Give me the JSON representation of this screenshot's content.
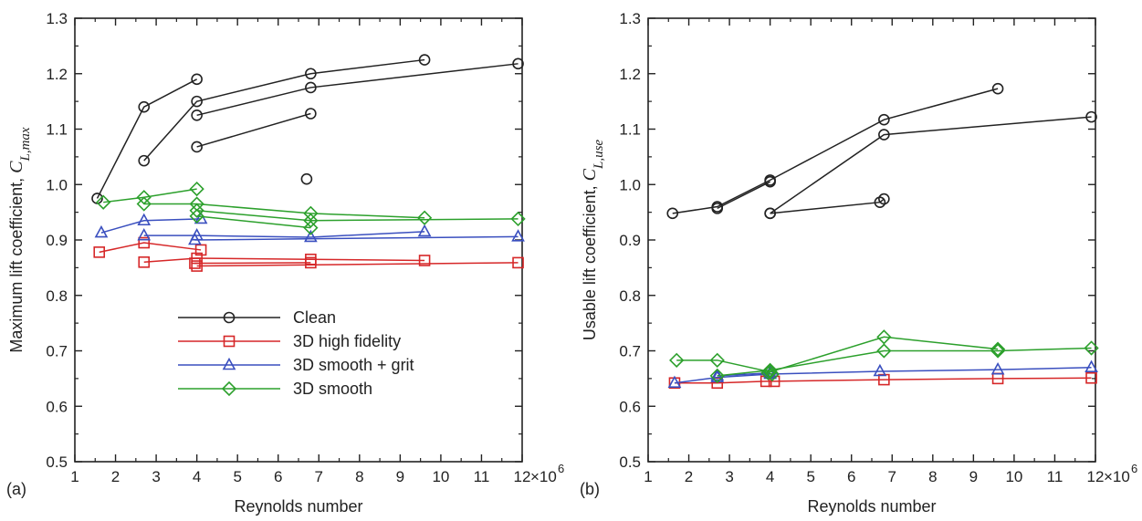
{
  "figure": {
    "panels": [
      "(a)",
      "(b)"
    ],
    "multiplier": "×10",
    "multiplier_exp": "6"
  },
  "legend": [
    {
      "label": "Clean",
      "color": "#222222",
      "marker": "circle"
    },
    {
      "label": "3D high fidelity",
      "color": "#d62728",
      "marker": "square"
    },
    {
      "label": "3D smooth + grit",
      "color": "#3a4fbf",
      "marker": "triangle"
    },
    {
      "label": "3D smooth",
      "color": "#2ca02c",
      "marker": "diamond"
    }
  ],
  "chart_data": [
    {
      "type": "line",
      "panel_label": "(a)",
      "xlabel": "Reynolds number",
      "ylabel_main": "Maximum lift coefficient, ",
      "ylabel_symbol": "C",
      "ylabel_sub": "L,max",
      "xlim": [
        1,
        12
      ],
      "ylim": [
        0.5,
        1.3
      ],
      "xticks": [
        "1",
        "2",
        "3",
        "4",
        "5",
        "6",
        "7",
        "8",
        "9",
        "10",
        "11",
        "12"
      ],
      "yticks": [
        "0.5",
        "0.6",
        "0.7",
        "0.8",
        "0.9",
        "1.0",
        "1.1",
        "1.2",
        "1.3"
      ],
      "grid": false,
      "legend_position": "lower-middle",
      "series": [
        {
          "name": "Clean",
          "color": "#222222",
          "marker": "circle",
          "lines": [
            [
              [
                1.55,
                0.975
              ],
              [
                2.7,
                1.14
              ],
              [
                4.0,
                1.19
              ]
            ],
            [
              [
                2.7,
                1.043
              ],
              [
                4.0,
                1.15
              ],
              [
                6.8,
                1.2
              ],
              [
                9.6,
                1.225
              ]
            ],
            [
              [
                4.0,
                1.125
              ],
              [
                6.8,
                1.175
              ],
              [
                11.9,
                1.218
              ]
            ],
            [
              [
                4.0,
                1.068
              ],
              [
                6.8,
                1.128
              ]
            ],
            [
              [
                6.7,
                1.01
              ]
            ]
          ]
        },
        {
          "name": "3D high fidelity",
          "color": "#d62728",
          "marker": "square",
          "lines": [
            [
              [
                1.6,
                0.878
              ],
              [
                2.7,
                0.895
              ],
              [
                4.1,
                0.882
              ]
            ],
            [
              [
                2.7,
                0.86
              ],
              [
                4.0,
                0.867
              ],
              [
                6.8,
                0.865
              ],
              [
                9.6,
                0.863
              ]
            ],
            [
              [
                3.95,
                0.858
              ],
              [
                6.8,
                0.859
              ]
            ],
            [
              [
                4.0,
                0.853
              ],
              [
                11.9,
                0.859
              ]
            ]
          ]
        },
        {
          "name": "3D smooth + grit",
          "color": "#3a4fbf",
          "marker": "triangle",
          "lines": [
            [
              [
                1.65,
                0.913
              ],
              [
                2.7,
                0.935
              ],
              [
                4.1,
                0.938
              ]
            ],
            [
              [
                2.7,
                0.908
              ],
              [
                4.0,
                0.908
              ],
              [
                6.8,
                0.905
              ],
              [
                9.6,
                0.915
              ]
            ],
            [
              [
                3.95,
                0.9
              ],
              [
                11.9,
                0.906
              ]
            ]
          ]
        },
        {
          "name": "3D smooth",
          "color": "#2ca02c",
          "marker": "diamond",
          "lines": [
            [
              [
                1.7,
                0.968
              ],
              [
                2.7,
                0.977
              ],
              [
                4.0,
                0.992
              ]
            ],
            [
              [
                2.7,
                0.965
              ],
              [
                4.0,
                0.965
              ],
              [
                6.8,
                0.948
              ],
              [
                9.6,
                0.94
              ]
            ],
            [
              [
                4.0,
                0.953
              ],
              [
                6.8,
                0.935
              ],
              [
                11.9,
                0.938
              ]
            ],
            [
              [
                4.0,
                0.943
              ],
              [
                6.8,
                0.922
              ]
            ]
          ]
        }
      ]
    },
    {
      "type": "line",
      "panel_label": "(b)",
      "xlabel": "Reynolds number",
      "ylabel_main": "Usable lift coefficient, ",
      "ylabel_symbol": "C",
      "ylabel_sub": "L,use",
      "xlim": [
        1,
        12
      ],
      "ylim": [
        0.5,
        1.3
      ],
      "xticks": [
        "1",
        "2",
        "3",
        "4",
        "5",
        "6",
        "7",
        "8",
        "9",
        "10",
        "11",
        "12"
      ],
      "yticks": [
        "0.5",
        "0.6",
        "0.7",
        "0.8",
        "0.9",
        "1.0",
        "1.1",
        "1.2",
        "1.3"
      ],
      "grid": false,
      "series": [
        {
          "name": "Clean",
          "color": "#222222",
          "marker": "circle",
          "lines": [
            [
              [
                1.6,
                0.948
              ],
              [
                2.7,
                0.96
              ],
              [
                4.0,
                1.008
              ],
              [
                6.8,
                1.117
              ],
              [
                9.6,
                1.173
              ]
            ],
            [
              [
                2.7,
                0.957
              ],
              [
                4.0,
                1.005
              ]
            ],
            [
              [
                4.0,
                0.948
              ],
              [
                6.8,
                1.09
              ],
              [
                11.9,
                1.122
              ]
            ],
            [
              [
                4.0,
                0.948
              ],
              [
                6.7,
                0.968
              ],
              [
                6.8,
                0.974
              ]
            ]
          ]
        },
        {
          "name": "3D high fidelity",
          "color": "#d62728",
          "marker": "square",
          "lines": [
            [
              [
                1.65,
                0.642
              ],
              [
                2.7,
                0.642
              ],
              [
                3.9,
                0.645
              ],
              [
                4.1,
                0.645
              ],
              [
                6.8,
                0.648
              ],
              [
                9.6,
                0.65
              ],
              [
                11.9,
                0.651
              ]
            ]
          ]
        },
        {
          "name": "3D smooth + grit",
          "color": "#3a4fbf",
          "marker": "triangle",
          "lines": [
            [
              [
                1.65,
                0.642
              ],
              [
                2.7,
                0.652
              ],
              [
                4.0,
                0.658
              ],
              [
                6.7,
                0.663
              ],
              [
                9.6,
                0.666
              ],
              [
                11.9,
                0.67
              ]
            ],
            [
              [
                2.7,
                0.655
              ],
              [
                4.0,
                0.66
              ]
            ]
          ]
        },
        {
          "name": "3D smooth",
          "color": "#2ca02c",
          "marker": "diamond",
          "lines": [
            [
              [
                1.7,
                0.683
              ],
              [
                2.7,
                0.683
              ],
              [
                4.0,
                0.662
              ],
              [
                6.8,
                0.725
              ],
              [
                9.6,
                0.703
              ]
            ],
            [
              [
                2.7,
                0.655
              ],
              [
                4.0,
                0.665
              ],
              [
                6.8,
                0.7
              ],
              [
                9.6,
                0.7
              ],
              [
                11.9,
                0.705
              ]
            ],
            [
              [
                3.95,
                0.66
              ],
              [
                4.05,
                0.658
              ]
            ]
          ]
        }
      ]
    }
  ]
}
